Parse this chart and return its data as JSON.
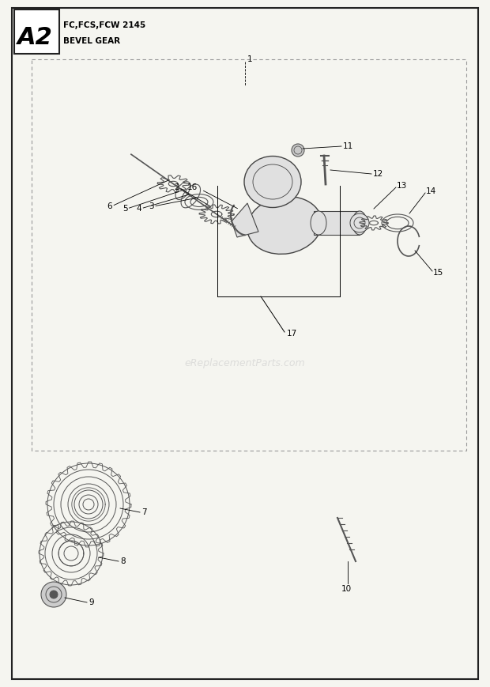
{
  "title_code": "A2",
  "title_line1": "FC,FCS,FCW 2145",
  "title_line2": "BEVEL GEAR",
  "watermark": "eReplacementParts.com",
  "bg_color": "#f5f5f0",
  "border_color": "#222222",
  "dashed_color": "#999999",
  "part_color": "#555555",
  "housing_face": "#e0e0e0",
  "housing_edge": "#444444"
}
